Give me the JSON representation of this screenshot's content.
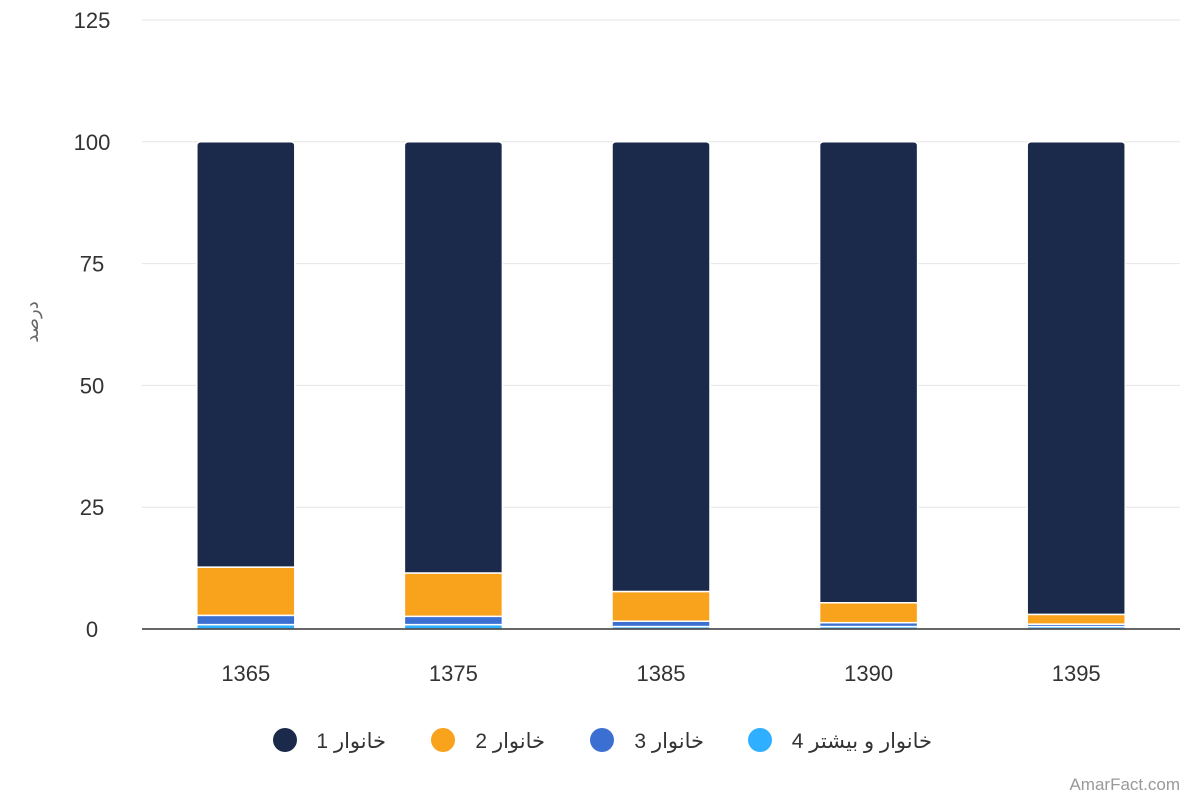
{
  "chart_data": {
    "type": "bar",
    "stacked": true,
    "categories": [
      "1365",
      "1375",
      "1385",
      "1390",
      "1395"
    ],
    "series": [
      {
        "name": "خانوار 1",
        "color": "#1b2a4b",
        "values": [
          87.3,
          88.5,
          92.3,
          94.6,
          97.0
        ]
      },
      {
        "name": "خانوار 2",
        "color": "#f9a21b",
        "values": [
          9.9,
          8.9,
          6.1,
          4.1,
          2.0
        ]
      },
      {
        "name": "خانوار 3",
        "color": "#3b6fd2",
        "values": [
          1.9,
          1.7,
          1.1,
          0.8,
          0.5
        ]
      },
      {
        "name": "خانوار و بیشتر 4",
        "color": "#2eafff",
        "values": [
          0.9,
          0.9,
          0.5,
          0.5,
          0.5
        ]
      }
    ],
    "xlabel": "",
    "ylabel": "درصد",
    "ylim": [
      0,
      125
    ],
    "yticks": [
      "0",
      "25",
      "50",
      "75",
      "100",
      "125"
    ],
    "grid": true,
    "legend_position": "bottom"
  },
  "credit": "AmarFact.com"
}
